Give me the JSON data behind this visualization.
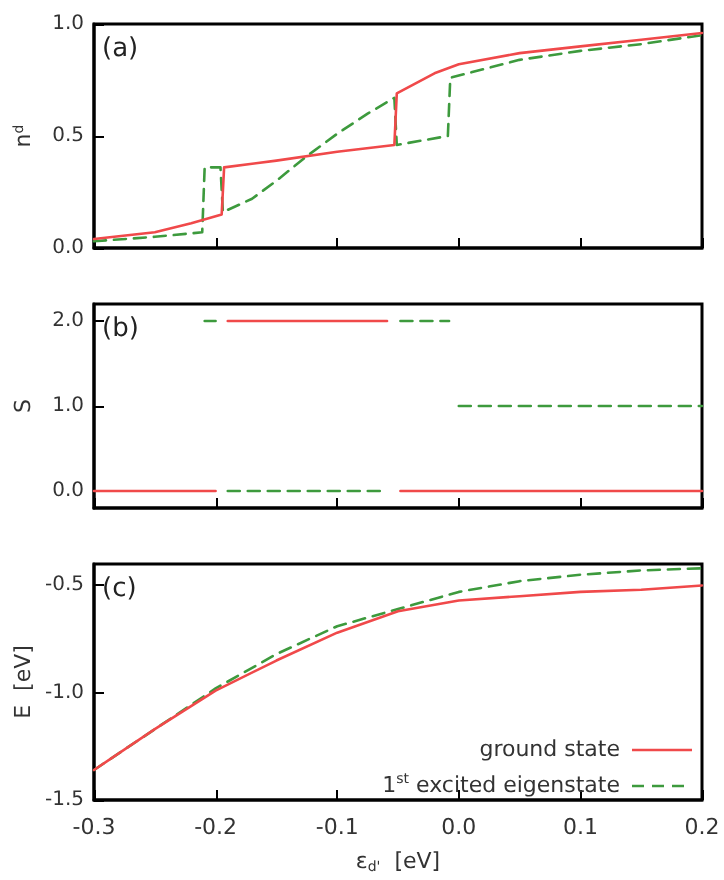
{
  "chart_data": [
    {
      "type": "line",
      "ylabel": "n$^{d}$",
      "annotations": [
        "(a)"
      ],
      "xlim": [
        -0.3,
        0.2
      ],
      "xticks": [
        -0.3,
        -0.2,
        -0.1,
        0,
        0.1,
        0.2
      ],
      "ylim": [
        0,
        1
      ],
      "yticks": [
        {
          "value": 0,
          "label": "0.0"
        },
        0.5,
        {
          "value": 1,
          "label": "1.0"
        }
      ],
      "tick_labels": "y",
      "marker": "none",
      "legend": false,
      "series": [
        {
          "color": "#f0494a",
          "line_style": "solid",
          "x": [
            -0.3,
            -0.25,
            -0.22,
            -0.195,
            -0.193,
            -0.15,
            -0.1,
            -0.053,
            -0.051,
            -0.02,
            0.0,
            0.05,
            0.1,
            0.15,
            0.2
          ],
          "values": [
            0.04,
            0.07,
            0.11,
            0.15,
            0.36,
            0.39,
            0.43,
            0.46,
            0.69,
            0.78,
            0.82,
            0.87,
            0.9,
            0.93,
            0.96
          ]
        },
        {
          "color": "#3d9a3d",
          "line_style": "dashed",
          "x": [
            -0.3,
            -0.25,
            -0.211,
            -0.209,
            -0.196,
            -0.194,
            -0.17,
            -0.15,
            -0.125,
            -0.1,
            -0.075,
            -0.053,
            -0.051,
            -0.009,
            -0.007,
            0.05,
            0.1,
            0.15,
            0.2
          ],
          "values": [
            0.03,
            0.05,
            0.07,
            0.36,
            0.36,
            0.16,
            0.22,
            0.3,
            0.41,
            0.51,
            0.6,
            0.67,
            0.46,
            0.5,
            0.76,
            0.84,
            0.88,
            0.91,
            0.95
          ]
        }
      ]
    },
    {
      "type": "line",
      "ylabel": "S",
      "annotations": [
        "(b)"
      ],
      "xlim": [
        -0.3,
        0.2
      ],
      "xticks": [
        -0.3,
        -0.2,
        -0.1,
        0,
        0.1,
        0.2
      ],
      "ylim": [
        -0.2,
        2.2
      ],
      "yticks": [
        {
          "value": 0,
          "label": "0.0"
        },
        {
          "value": 1,
          "label": "1.0"
        },
        {
          "value": 2,
          "label": "2.0"
        }
      ],
      "tick_labels": "y",
      "marker": "none",
      "legend": false,
      "series": [
        {
          "color": "#f0494a",
          "line_style": "solid",
          "x": [
            -0.3,
            -0.2
          ],
          "values": [
            0,
            0
          ]
        },
        {
          "color": "#f0494a",
          "line_style": "solid",
          "x": [
            -0.19,
            -0.059
          ],
          "values": [
            2,
            2
          ]
        },
        {
          "color": "#f0494a",
          "line_style": "solid",
          "x": [
            -0.048,
            0.2
          ],
          "values": [
            0,
            0
          ]
        },
        {
          "color": "#3d9a3d",
          "line_style": "dashed",
          "x": [
            -0.209,
            -0.2
          ],
          "values": [
            2,
            2
          ]
        },
        {
          "color": "#3d9a3d",
          "line_style": "dashed",
          "x": [
            -0.19,
            -0.06
          ],
          "values": [
            0,
            0
          ]
        },
        {
          "color": "#3d9a3d",
          "line_style": "dashed",
          "x": [
            -0.048,
            -0.008
          ],
          "values": [
            2,
            2
          ]
        },
        {
          "color": "#3d9a3d",
          "line_style": "dashed",
          "x": [
            0.0,
            0.2
          ],
          "values": [
            1,
            1
          ]
        }
      ]
    },
    {
      "type": "line",
      "ylabel": "E  [eV]",
      "xlabel": "ε$_{d'}$  [eV]",
      "annotations": [
        "(c)"
      ],
      "xlim": [
        -0.3,
        0.2
      ],
      "xticks": [
        -0.3,
        -0.2,
        -0.1,
        {
          "value": 0,
          "label": "0.0"
        },
        0.1,
        0.2
      ],
      "ylim": [
        -1.5,
        -0.4
      ],
      "yticks": [
        -1.5,
        {
          "value": -1,
          "label": "-1.0"
        },
        -0.5
      ],
      "marker": "none",
      "legend": "bottom right",
      "series": [
        {
          "name": "ground state",
          "color": "#f0494a",
          "line_style": "solid",
          "x": [
            -0.3,
            -0.25,
            -0.2,
            -0.15,
            -0.1,
            -0.05,
            0,
            0.05,
            0.1,
            0.15,
            0.2
          ],
          "values": [
            -1.36,
            -1.17,
            -0.99,
            -0.85,
            -0.72,
            -0.62,
            -0.57,
            -0.55,
            -0.53,
            -0.52,
            -0.5
          ]
        },
        {
          "name": "1$^{st}$ excited eigenstate",
          "color": "#3d9a3d",
          "line_style": "dashed",
          "x": [
            -0.3,
            -0.25,
            -0.2,
            -0.15,
            -0.1,
            -0.05,
            0,
            0.05,
            0.1,
            0.15,
            0.2
          ],
          "values": [
            -1.36,
            -1.17,
            -0.98,
            -0.82,
            -0.69,
            -0.61,
            -0.53,
            -0.48,
            -0.45,
            -0.43,
            -0.42
          ]
        }
      ]
    }
  ]
}
